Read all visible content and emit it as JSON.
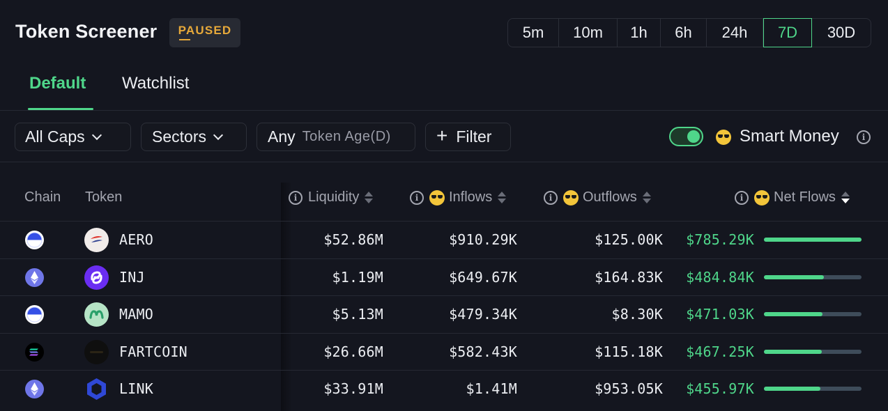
{
  "header": {
    "title": "Token Screener",
    "status_badge": "PAUSED",
    "timeframes": [
      "5m",
      "10m",
      "1h",
      "6h",
      "24h",
      "7D",
      "30D"
    ],
    "active_timeframe": "7D"
  },
  "tabs": [
    {
      "label": "Default",
      "active": true
    },
    {
      "label": "Watchlist",
      "active": false
    }
  ],
  "filters": {
    "caps": "All Caps",
    "sectors": "Sectors",
    "token_age_value": "Any",
    "token_age_label": "Token Age(D)",
    "add_filter": "Filter",
    "smart_money_label": "Smart Money",
    "smart_money_enabled": true
  },
  "table": {
    "columns": {
      "chain": "Chain",
      "token": "Token",
      "liquidity": "Liquidity",
      "inflows": "Inflows",
      "outflows": "Outflows",
      "net_flows": "Net Flows"
    },
    "sort_column": "net_flows",
    "sort_direction": "desc",
    "rows": [
      {
        "chain": "base",
        "token": "AERO",
        "liquidity": "$52.86M",
        "inflows": "$910.29K",
        "outflows": "$125.00K",
        "net_flows": "$785.29K",
        "net_flow_fraction": 1.0
      },
      {
        "chain": "ethereum",
        "token": "INJ",
        "liquidity": "$1.19M",
        "inflows": "$649.67K",
        "outflows": "$164.83K",
        "net_flows": "$484.84K",
        "net_flow_fraction": 0.617
      },
      {
        "chain": "base",
        "token": "MAMO",
        "liquidity": "$5.13M",
        "inflows": "$479.34K",
        "outflows": "$8.30K",
        "net_flows": "$471.03K",
        "net_flow_fraction": 0.6
      },
      {
        "chain": "solana",
        "token": "FARTCOIN",
        "liquidity": "$26.66M",
        "inflows": "$582.43K",
        "outflows": "$115.18K",
        "net_flows": "$467.25K",
        "net_flow_fraction": 0.595
      },
      {
        "chain": "ethereum",
        "token": "LINK",
        "liquidity": "$33.91M",
        "inflows": "$1.41M",
        "outflows": "$953.05K",
        "net_flows": "$455.97K",
        "net_flow_fraction": 0.581
      }
    ]
  },
  "colors": {
    "accent": "#4fd68a",
    "badge": "#e7a93a",
    "background": "#14161f"
  }
}
